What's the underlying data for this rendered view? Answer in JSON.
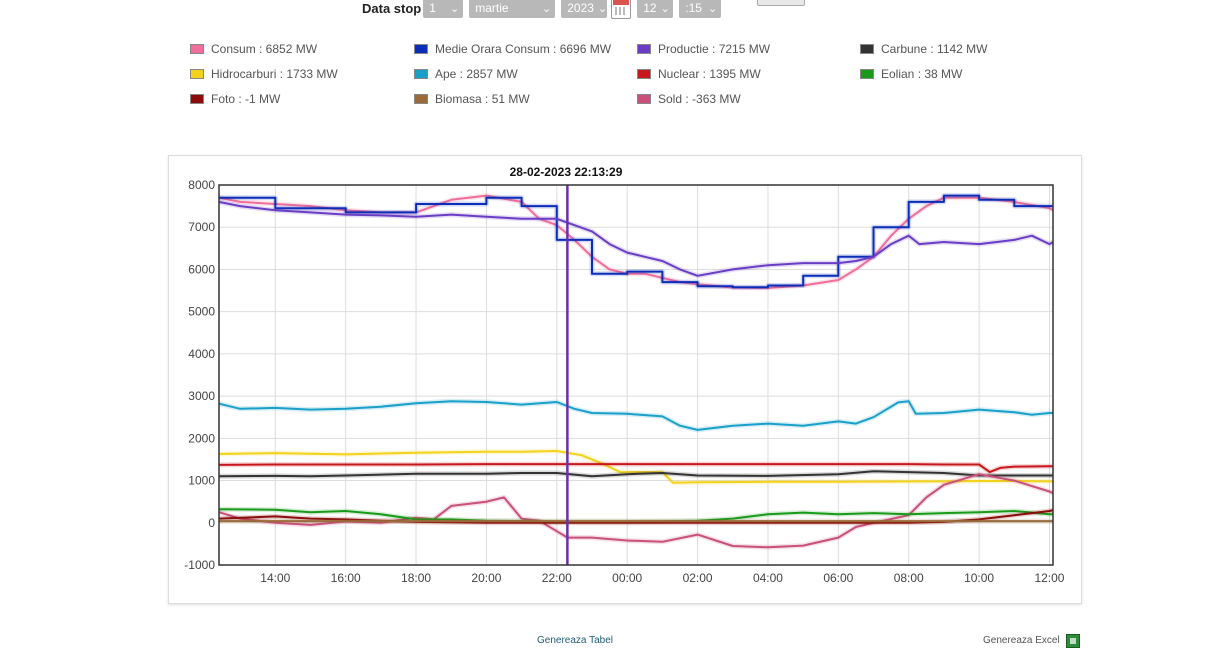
{
  "controls": {
    "label": "Data stop",
    "day": "1",
    "month": "martie",
    "year": "2023",
    "hour": "12",
    "minute": ":15"
  },
  "legend": [
    {
      "label": "Consum : 6852 MW",
      "color": "#f06e9c"
    },
    {
      "label": "Medie Orara Consum : 6696 MW",
      "color": "#0b2db8"
    },
    {
      "label": "Productie : 7215 MW",
      "color": "#6a3ec4"
    },
    {
      "label": "Carbune : 1142 MW",
      "color": "#333333"
    },
    {
      "label": "Hidrocarburi : 1733 MW",
      "color": "#f2d21b"
    },
    {
      "label": "Ape : 2857 MW",
      "color": "#1aa0c8"
    },
    {
      "label": "Nuclear : 1395 MW",
      "color": "#c8161d"
    },
    {
      "label": "Eolian : 38 MW",
      "color": "#1a9a1a"
    },
    {
      "label": "Foto : -1 MW",
      "color": "#8b0a0a"
    },
    {
      "label": "Biomasa : 51 MW",
      "color": "#9a6a3a"
    },
    {
      "label": "Sold : -363 MW",
      "color": "#c8507a"
    }
  ],
  "chart_data": {
    "type": "line",
    "title": "28-02-2023 22:13:29",
    "ylim": [
      -1000,
      8000
    ],
    "yticks": [
      "8000",
      "7000",
      "6000",
      "5000",
      "4000",
      "3000",
      "2000",
      "1000",
      "0",
      "-1000"
    ],
    "xlim": [
      12.4,
      36.1
    ],
    "xticks": [
      {
        "value": 14,
        "label": "14:00"
      },
      {
        "value": 16,
        "label": "16:00"
      },
      {
        "value": 18,
        "label": "18:00"
      },
      {
        "value": 20,
        "label": "20:00"
      },
      {
        "value": 22,
        "label": "22:00"
      },
      {
        "value": 24,
        "label": "00:00"
      },
      {
        "value": 26,
        "label": "02:00"
      },
      {
        "value": 28,
        "label": "04:00"
      },
      {
        "value": 30,
        "label": "06:00"
      },
      {
        "value": 32,
        "label": "08:00"
      },
      {
        "value": 34,
        "label": "10:00"
      },
      {
        "value": 36,
        "label": "12:00"
      }
    ],
    "marker_x": 22.3,
    "marker_color": "#6a2fb0",
    "grid": true,
    "series": [
      {
        "name": "Hidrocarburi",
        "color": "#f2d21b",
        "x": [
          12.4,
          14,
          16,
          18,
          20,
          21,
          22,
          22.7,
          23.3,
          23.8,
          25,
          25.3,
          26,
          28,
          30,
          32,
          33,
          34,
          35,
          36,
          36.1
        ],
        "y": [
          1630,
          1650,
          1620,
          1660,
          1680,
          1680,
          1700,
          1600,
          1400,
          1200,
          1200,
          950,
          960,
          970,
          970,
          980,
          980,
          990,
          990,
          980,
          980
        ]
      },
      {
        "name": "Ape",
        "color": "#1aa0c8",
        "x": [
          12.4,
          13,
          14,
          15,
          16,
          17,
          18,
          19,
          20,
          21,
          22,
          22.5,
          23,
          24,
          25,
          25.5,
          26,
          27,
          28,
          29,
          30,
          30.5,
          31,
          31.7,
          32,
          32.2,
          33,
          34,
          35,
          35.5,
          36,
          36.1
        ],
        "y": [
          2820,
          2700,
          2720,
          2680,
          2700,
          2750,
          2830,
          2880,
          2860,
          2800,
          2860,
          2700,
          2600,
          2580,
          2520,
          2300,
          2200,
          2300,
          2350,
          2300,
          2400,
          2350,
          2500,
          2850,
          2880,
          2580,
          2600,
          2680,
          2620,
          2560,
          2600,
          2600
        ]
      },
      {
        "name": "Nuclear",
        "color": "#c8161d",
        "x": [
          12.4,
          14,
          16,
          18,
          20,
          22,
          24,
          26,
          28,
          30,
          32,
          33,
          34,
          34.3,
          34.6,
          35,
          36,
          36.1
        ],
        "y": [
          1370,
          1380,
          1380,
          1380,
          1390,
          1390,
          1390,
          1390,
          1390,
          1390,
          1390,
          1380,
          1380,
          1200,
          1300,
          1330,
          1340,
          1340
        ]
      },
      {
        "name": "Carbune",
        "color": "#333333",
        "x": [
          12.4,
          14,
          15,
          16,
          18,
          20,
          21,
          22,
          23,
          24,
          25,
          26,
          28,
          30,
          31,
          32,
          33,
          34,
          35,
          36,
          36.1
        ],
        "y": [
          1100,
          1110,
          1100,
          1120,
          1160,
          1160,
          1180,
          1180,
          1100,
          1150,
          1180,
          1120,
          1110,
          1150,
          1220,
          1200,
          1180,
          1120,
          1120,
          1120,
          1120
        ]
      },
      {
        "name": "Sold",
        "color": "#c8507a",
        "x": [
          12.4,
          13,
          14,
          15,
          16,
          17,
          18,
          18.5,
          19,
          20,
          20.5,
          21,
          21.5,
          22,
          22.3,
          23,
          24,
          25,
          26,
          27,
          28,
          29,
          30,
          30.5,
          31,
          32,
          32.5,
          33,
          34,
          35,
          36,
          36.1
        ],
        "y": [
          250,
          100,
          0,
          -50,
          30,
          0,
          120,
          80,
          400,
          500,
          600,
          100,
          50,
          -200,
          -350,
          -350,
          -420,
          -450,
          -280,
          -550,
          -580,
          -540,
          -350,
          -100,
          0,
          180,
          600,
          900,
          1150,
          1000,
          740,
          700
        ]
      },
      {
        "name": "Eolian",
        "color": "#1a9a1a",
        "x": [
          12.4,
          14,
          15,
          16,
          17,
          18,
          19,
          20,
          21,
          22,
          24,
          26,
          27,
          28,
          29,
          30,
          31,
          32,
          33,
          34,
          35,
          36,
          36.1
        ],
        "y": [
          320,
          310,
          250,
          280,
          200,
          80,
          80,
          50,
          40,
          20,
          20,
          50,
          100,
          200,
          240,
          200,
          230,
          200,
          230,
          250,
          280,
          200,
          200
        ]
      },
      {
        "name": "Foto",
        "color": "#8b0a0a",
        "x": [
          12.4,
          14,
          15,
          16,
          17,
          18,
          20,
          22,
          24,
          26,
          28,
          30,
          31,
          32,
          33,
          34,
          35,
          36,
          36.1
        ],
        "y": [
          100,
          150,
          100,
          80,
          50,
          20,
          0,
          0,
          0,
          0,
          0,
          0,
          0,
          0,
          20,
          80,
          180,
          280,
          300
        ]
      },
      {
        "name": "Biomasa",
        "color": "#9a6a3a",
        "x": [
          12.4,
          36.1
        ],
        "y": [
          40,
          40
        ]
      },
      {
        "name": "Consum",
        "color": "#f06e9c",
        "x": [
          12.4,
          13,
          14,
          15,
          16,
          17,
          18,
          19,
          20,
          21,
          21.5,
          22,
          22.5,
          23,
          23.5,
          24,
          24.5,
          25,
          25.5,
          26,
          27,
          28,
          29,
          30,
          30.5,
          31,
          31.5,
          32,
          32.5,
          33,
          34,
          35,
          36,
          36.1
        ],
        "y": [
          7700,
          7600,
          7550,
          7500,
          7400,
          7350,
          7350,
          7650,
          7750,
          7600,
          7200,
          7050,
          6700,
          6300,
          6000,
          5900,
          5900,
          5800,
          5700,
          5650,
          5570,
          5560,
          5620,
          5750,
          6000,
          6300,
          6800,
          7200,
          7500,
          7700,
          7700,
          7600,
          7450,
          7400
        ]
      },
      {
        "name": "Medie Orara Consum",
        "color": "#0b2db8",
        "x": [
          12.4,
          14,
          14,
          16,
          16,
          18,
          18,
          20,
          20,
          21,
          21,
          22,
          22,
          23,
          23,
          24,
          24,
          25,
          25,
          26,
          26,
          27,
          27,
          28,
          28,
          29,
          29,
          30,
          30,
          31,
          31,
          32,
          32,
          33,
          33,
          34,
          34,
          35,
          35,
          36.1
        ],
        "y": [
          7700,
          7700,
          7450,
          7450,
          7350,
          7350,
          7550,
          7550,
          7700,
          7700,
          7500,
          7500,
          6700,
          6700,
          5900,
          5900,
          5950,
          5950,
          5700,
          5700,
          5600,
          5600,
          5580,
          5580,
          5620,
          5620,
          5850,
          5850,
          6300,
          6300,
          7000,
          7000,
          7600,
          7600,
          7750,
          7750,
          7650,
          7650,
          7500,
          7500
        ]
      },
      {
        "name": "Productie",
        "color": "#6a3ec4",
        "x": [
          12.4,
          13,
          14,
          15,
          16,
          17,
          18,
          19,
          20,
          21,
          22,
          23,
          23.5,
          24,
          24.5,
          25,
          25.5,
          26,
          27,
          28,
          29,
          30,
          30.5,
          31,
          31.5,
          32,
          32.3,
          33,
          34,
          35,
          35.5,
          36,
          36.1
        ],
        "y": [
          7600,
          7500,
          7400,
          7350,
          7300,
          7280,
          7250,
          7300,
          7250,
          7200,
          7200,
          6900,
          6600,
          6400,
          6300,
          6200,
          6000,
          5850,
          6000,
          6100,
          6150,
          6150,
          6200,
          6300,
          6600,
          6800,
          6600,
          6650,
          6600,
          6700,
          6800,
          6600,
          6650
        ]
      }
    ]
  },
  "footer": {
    "table_link": "Genereaza Tabel",
    "excel_link": "Genereaza Excel"
  }
}
